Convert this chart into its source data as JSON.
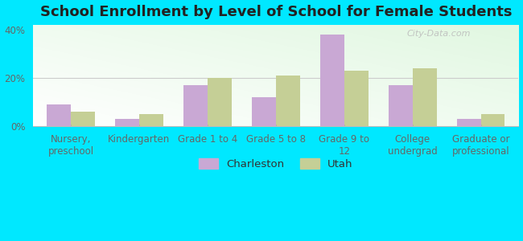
{
  "title": "School Enrollment by Level of School for Female Students",
  "categories": [
    "Nursery,\npreschool",
    "Kindergarten",
    "Grade 1 to 4",
    "Grade 5 to 8",
    "Grade 9 to\n12",
    "College\nundergrad",
    "Graduate or\nprofessional"
  ],
  "charleston_values": [
    9,
    3,
    17,
    12,
    38,
    17,
    3
  ],
  "utah_values": [
    6,
    5,
    20,
    21,
    23,
    24,
    5
  ],
  "charleston_color": "#c9a8d4",
  "utah_color": "#c5cf96",
  "bar_width": 0.35,
  "ylim": [
    0,
    42
  ],
  "yticks": [
    0,
    20,
    40
  ],
  "ytick_labels": [
    "0%",
    "20%",
    "40%"
  ],
  "legend_labels": [
    "Charleston",
    "Utah"
  ],
  "outer_bg": "#00e8ff",
  "title_fontsize": 13,
  "tick_fontsize": 8.5,
  "legend_fontsize": 9.5,
  "watermark": "City-Data.com"
}
